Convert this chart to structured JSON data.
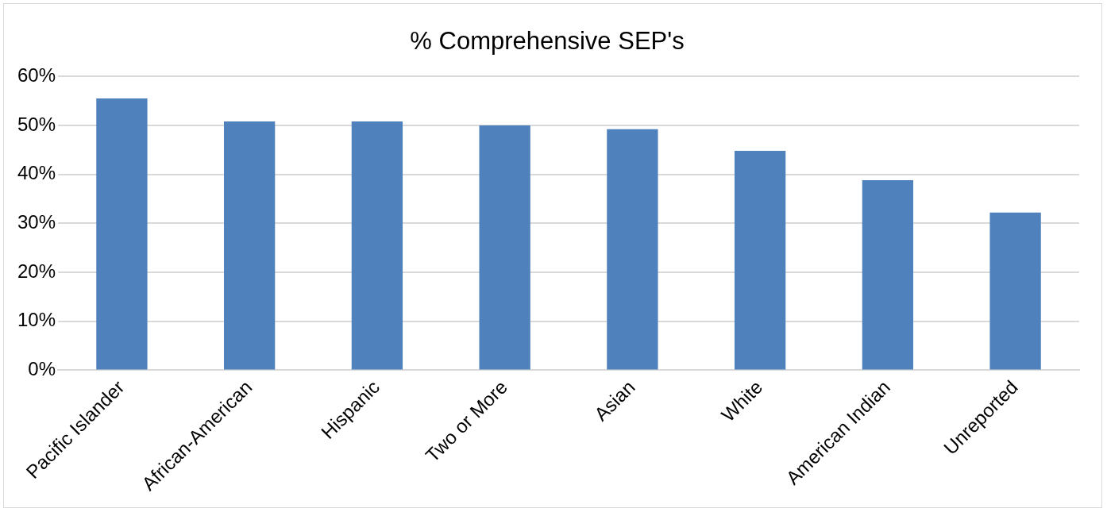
{
  "chart_data": {
    "type": "bar",
    "title": "% Comprehensive SEP's",
    "categories": [
      "Pacific Islander",
      "African-American",
      "Hispanic",
      "Two or More",
      "Asian",
      "White",
      "American Indian",
      "Unreported"
    ],
    "values": [
      55.5,
      50.8,
      50.8,
      50.0,
      49.2,
      44.8,
      38.8,
      32.2
    ],
    "color": "#4f81bd",
    "ylim": [
      0,
      60
    ],
    "yticks": [
      {
        "value": 0,
        "label": "0%"
      },
      {
        "value": 10,
        "label": "10%"
      },
      {
        "value": 20,
        "label": "20%"
      },
      {
        "value": 30,
        "label": "30%"
      },
      {
        "value": 40,
        "label": "40%"
      },
      {
        "value": 50,
        "label": "50%"
      },
      {
        "value": 60,
        "label": "60%"
      }
    ],
    "grid": "y",
    "legend": false
  }
}
